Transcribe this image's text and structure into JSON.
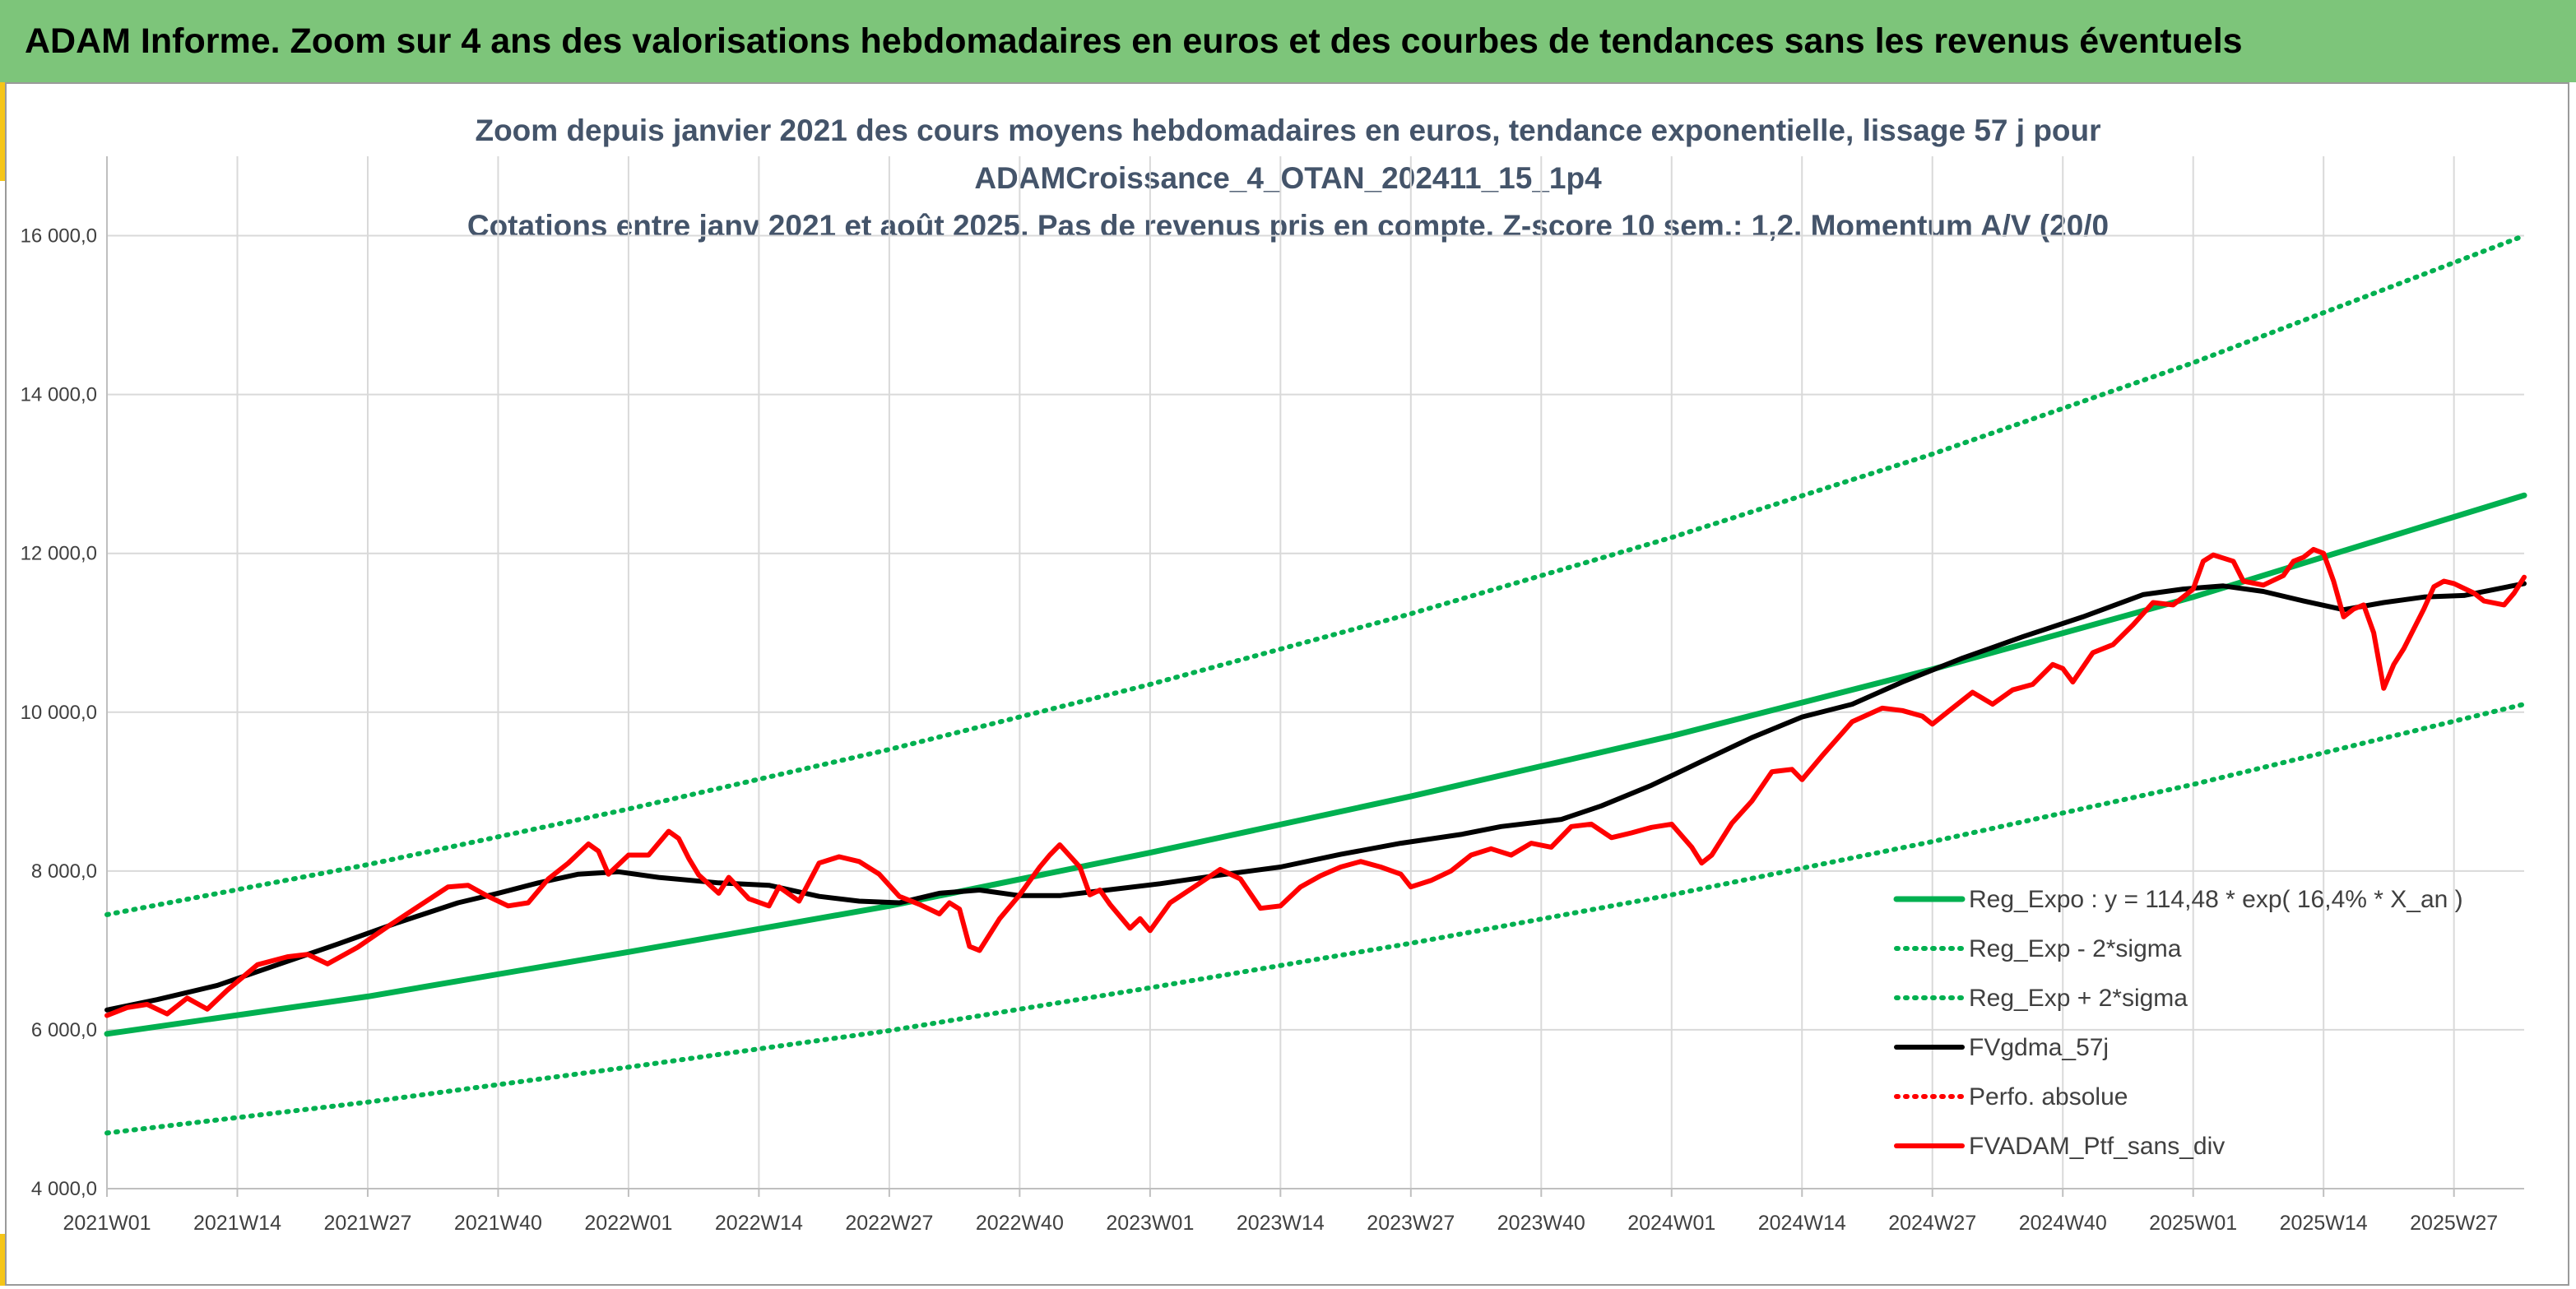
{
  "header": {
    "title": "ADAM Informe. Zoom sur 4 ans des valorisations hebdomadaires en euros et des courbes de tendances sans les revenus éventuels"
  },
  "colors": {
    "banner": "#7dc57a",
    "accent": "#f5c518",
    "title_text": "#44546a",
    "trend": "#00b050",
    "sma": "#000000",
    "price": "#ff0000"
  },
  "chart_data": {
    "type": "line",
    "title_lines": [
      "Zoom depuis janvier 2021 des cours moyens hebdomadaires en euros, tendance exponentielle, lissage 57 j pour",
      "ADAMCroissance_4_OTAN_202411_15_1p4",
      "Cotations entre janv 2021 et août 2025. Pas de revenus pris en compte. Z-score 10 sem.: 1,2. Momentum A/V (20/0"
    ],
    "xlabel": "",
    "ylabel": "",
    "ylim": [
      4000,
      17000
    ],
    "xlim": [
      1,
      242
    ],
    "grid": true,
    "legend_position": "bottom-right",
    "y_ticks": [
      {
        "value": 4000,
        "label": "4 000,0"
      },
      {
        "value": 6000,
        "label": "6 000,0"
      },
      {
        "value": 8000,
        "label": "8 000,0"
      },
      {
        "value": 10000,
        "label": "10 000,0"
      },
      {
        "value": 12000,
        "label": "12 000,0"
      },
      {
        "value": 14000,
        "label": "14 000,0"
      },
      {
        "value": 16000,
        "label": "16 000,0"
      }
    ],
    "x_ticks": [
      {
        "week": 1,
        "label": "2021W01"
      },
      {
        "week": 14,
        "label": "2021W14"
      },
      {
        "week": 27,
        "label": "2021W27"
      },
      {
        "week": 40,
        "label": "2021W40"
      },
      {
        "week": 53,
        "label": "2022W01"
      },
      {
        "week": 66,
        "label": "2022W14"
      },
      {
        "week": 79,
        "label": "2022W27"
      },
      {
        "week": 92,
        "label": "2022W40"
      },
      {
        "week": 105,
        "label": "2023W01"
      },
      {
        "week": 118,
        "label": "2023W14"
      },
      {
        "week": 131,
        "label": "2023W27"
      },
      {
        "week": 144,
        "label": "2023W40"
      },
      {
        "week": 157,
        "label": "2024W01"
      },
      {
        "week": 170,
        "label": "2024W14"
      },
      {
        "week": 183,
        "label": "2024W27"
      },
      {
        "week": 196,
        "label": "2024W40"
      },
      {
        "week": 209,
        "label": "2025W01"
      },
      {
        "week": 222,
        "label": "2025W14"
      },
      {
        "week": 235,
        "label": "2025W27"
      }
    ],
    "series": [
      {
        "name": "Reg_Expo : y = 114,48 * exp( 16,4% *  X_an )",
        "color": "#00b050",
        "style": "solid",
        "points": [
          [
            1,
            5950
          ],
          [
            27,
            6420
          ],
          [
            53,
            6980
          ],
          [
            79,
            7560
          ],
          [
            105,
            8230
          ],
          [
            131,
            8940
          ],
          [
            157,
            9700
          ],
          [
            183,
            10540
          ],
          [
            209,
            11450
          ],
          [
            242,
            12730
          ]
        ]
      },
      {
        "name": "Reg_Exp - 2*sigma",
        "color": "#00b050",
        "style": "dotted",
        "points": [
          [
            1,
            4700
          ],
          [
            27,
            5090
          ],
          [
            53,
            5530
          ],
          [
            79,
            5990
          ],
          [
            105,
            6530
          ],
          [
            131,
            7090
          ],
          [
            157,
            7700
          ],
          [
            183,
            8370
          ],
          [
            209,
            9090
          ],
          [
            242,
            10100
          ]
        ]
      },
      {
        "name": "Reg_Exp + 2*sigma",
        "color": "#00b050",
        "style": "dotted",
        "points": [
          [
            1,
            7450
          ],
          [
            27,
            8080
          ],
          [
            53,
            8780
          ],
          [
            79,
            9530
          ],
          [
            105,
            10350
          ],
          [
            131,
            11240
          ],
          [
            157,
            12200
          ],
          [
            183,
            13250
          ],
          [
            209,
            14400
          ],
          [
            242,
            16000
          ]
        ]
      },
      {
        "name": "FVgdma_57j",
        "color": "#000000",
        "style": "solid",
        "points": [
          [
            1,
            6250
          ],
          [
            6,
            6380
          ],
          [
            12,
            6560
          ],
          [
            18,
            6820
          ],
          [
            24,
            7080
          ],
          [
            30,
            7350
          ],
          [
            36,
            7600
          ],
          [
            40,
            7720
          ],
          [
            44,
            7850
          ],
          [
            48,
            7960
          ],
          [
            52,
            7990
          ],
          [
            56,
            7920
          ],
          [
            62,
            7850
          ],
          [
            67,
            7820
          ],
          [
            72,
            7680
          ],
          [
            76,
            7620
          ],
          [
            80,
            7600
          ],
          [
            84,
            7720
          ],
          [
            88,
            7760
          ],
          [
            92,
            7690
          ],
          [
            96,
            7690
          ],
          [
            102,
            7780
          ],
          [
            106,
            7840
          ],
          [
            112,
            7950
          ],
          [
            118,
            8050
          ],
          [
            124,
            8210
          ],
          [
            130,
            8350
          ],
          [
            136,
            8460
          ],
          [
            140,
            8560
          ],
          [
            146,
            8650
          ],
          [
            150,
            8820
          ],
          [
            155,
            9080
          ],
          [
            160,
            9380
          ],
          [
            165,
            9680
          ],
          [
            170,
            9940
          ],
          [
            175,
            10100
          ],
          [
            180,
            10380
          ],
          [
            186,
            10680
          ],
          [
            192,
            10950
          ],
          [
            198,
            11200
          ],
          [
            204,
            11480
          ],
          [
            208,
            11550
          ],
          [
            212,
            11590
          ],
          [
            216,
            11520
          ],
          [
            220,
            11400
          ],
          [
            224,
            11290
          ],
          [
            228,
            11380
          ],
          [
            232,
            11450
          ],
          [
            236,
            11470
          ],
          [
            242,
            11620
          ]
        ]
      },
      {
        "name": "Perfo. absolue",
        "color": "#ff0000",
        "style": "dotted",
        "points": []
      },
      {
        "name": "FVADAM_Ptf_sans_div",
        "color": "#ff0000",
        "style": "solid",
        "points": [
          [
            1,
            6180
          ],
          [
            3,
            6280
          ],
          [
            5,
            6320
          ],
          [
            7,
            6200
          ],
          [
            9,
            6400
          ],
          [
            11,
            6260
          ],
          [
            13,
            6500
          ],
          [
            16,
            6820
          ],
          [
            19,
            6920
          ],
          [
            21,
            6950
          ],
          [
            23,
            6830
          ],
          [
            26,
            7040
          ],
          [
            29,
            7300
          ],
          [
            32,
            7550
          ],
          [
            35,
            7800
          ],
          [
            37,
            7820
          ],
          [
            39,
            7680
          ],
          [
            41,
            7560
          ],
          [
            43,
            7600
          ],
          [
            45,
            7900
          ],
          [
            47,
            8100
          ],
          [
            49,
            8340
          ],
          [
            50,
            8250
          ],
          [
            51,
            7960
          ],
          [
            53,
            8200
          ],
          [
            55,
            8200
          ],
          [
            57,
            8500
          ],
          [
            58,
            8410
          ],
          [
            59,
            8160
          ],
          [
            60,
            7950
          ],
          [
            62,
            7720
          ],
          [
            63,
            7920
          ],
          [
            65,
            7650
          ],
          [
            67,
            7560
          ],
          [
            68,
            7800
          ],
          [
            70,
            7620
          ],
          [
            72,
            8100
          ],
          [
            74,
            8180
          ],
          [
            76,
            8120
          ],
          [
            78,
            7960
          ],
          [
            80,
            7680
          ],
          [
            82,
            7580
          ],
          [
            84,
            7460
          ],
          [
            85,
            7600
          ],
          [
            86,
            7520
          ],
          [
            87,
            7050
          ],
          [
            88,
            7000
          ],
          [
            90,
            7400
          ],
          [
            92,
            7700
          ],
          [
            94,
            8050
          ],
          [
            95,
            8200
          ],
          [
            96,
            8330
          ],
          [
            98,
            8050
          ],
          [
            99,
            7700
          ],
          [
            100,
            7760
          ],
          [
            101,
            7580
          ],
          [
            103,
            7280
          ],
          [
            104,
            7400
          ],
          [
            105,
            7250
          ],
          [
            107,
            7600
          ],
          [
            110,
            7850
          ],
          [
            112,
            8020
          ],
          [
            114,
            7900
          ],
          [
            116,
            7530
          ],
          [
            118,
            7560
          ],
          [
            120,
            7800
          ],
          [
            122,
            7940
          ],
          [
            124,
            8050
          ],
          [
            126,
            8120
          ],
          [
            128,
            8050
          ],
          [
            130,
            7960
          ],
          [
            131,
            7800
          ],
          [
            133,
            7880
          ],
          [
            135,
            8000
          ],
          [
            137,
            8200
          ],
          [
            139,
            8280
          ],
          [
            141,
            8200
          ],
          [
            143,
            8350
          ],
          [
            145,
            8300
          ],
          [
            147,
            8560
          ],
          [
            149,
            8590
          ],
          [
            151,
            8420
          ],
          [
            153,
            8480
          ],
          [
            155,
            8550
          ],
          [
            157,
            8590
          ],
          [
            159,
            8300
          ],
          [
            160,
            8100
          ],
          [
            161,
            8200
          ],
          [
            163,
            8600
          ],
          [
            165,
            8880
          ],
          [
            167,
            9250
          ],
          [
            169,
            9280
          ],
          [
            170,
            9150
          ],
          [
            172,
            9450
          ],
          [
            175,
            9880
          ],
          [
            178,
            10050
          ],
          [
            180,
            10020
          ],
          [
            182,
            9950
          ],
          [
            183,
            9850
          ],
          [
            185,
            10050
          ],
          [
            187,
            10250
          ],
          [
            189,
            10100
          ],
          [
            191,
            10280
          ],
          [
            193,
            10350
          ],
          [
            195,
            10600
          ],
          [
            196,
            10550
          ],
          [
            197,
            10380
          ],
          [
            199,
            10750
          ],
          [
            201,
            10850
          ],
          [
            203,
            11100
          ],
          [
            205,
            11380
          ],
          [
            207,
            11350
          ],
          [
            209,
            11550
          ],
          [
            210,
            11900
          ],
          [
            211,
            11980
          ],
          [
            213,
            11900
          ],
          [
            214,
            11650
          ],
          [
            216,
            11600
          ],
          [
            218,
            11720
          ],
          [
            219,
            11900
          ],
          [
            220,
            11950
          ],
          [
            221,
            12050
          ],
          [
            222,
            12000
          ],
          [
            223,
            11650
          ],
          [
            224,
            11200
          ],
          [
            225,
            11300
          ],
          [
            226,
            11350
          ],
          [
            227,
            11000
          ],
          [
            228,
            10300
          ],
          [
            229,
            10600
          ],
          [
            230,
            10800
          ],
          [
            232,
            11300
          ],
          [
            233,
            11580
          ],
          [
            234,
            11650
          ],
          [
            235,
            11620
          ],
          [
            237,
            11500
          ],
          [
            238,
            11400
          ],
          [
            240,
            11350
          ],
          [
            241,
            11500
          ],
          [
            242,
            11700
          ]
        ]
      }
    ]
  }
}
